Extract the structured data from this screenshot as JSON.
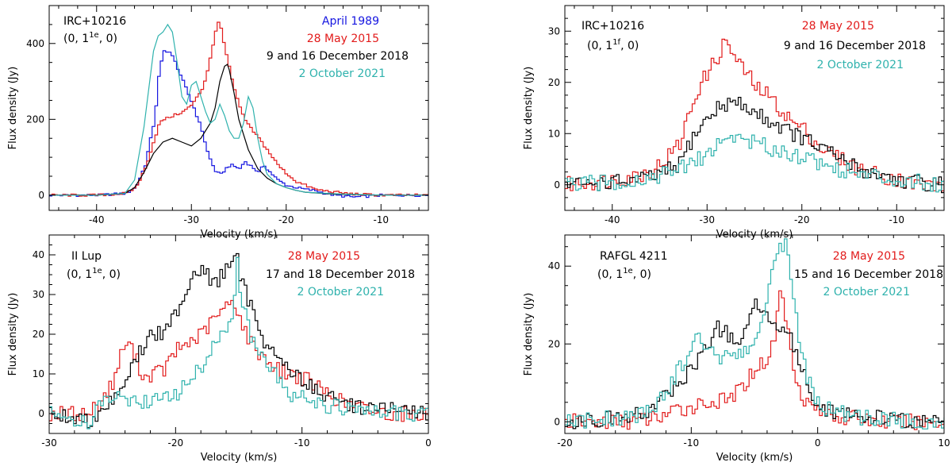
{
  "colors": {
    "blue": "#1515e0",
    "red": "#e21b1b",
    "black": "#000000",
    "cyan": "#2fb2ad"
  },
  "chart_data": [
    {
      "type": "line",
      "object": "IRC+10216",
      "transition": [
        "(0, 1",
        "1e",
        ", 0)"
      ],
      "xlabel": "Velocity (km/s)",
      "ylabel": "Flux density (Jy)",
      "xlim": [
        -45,
        -5
      ],
      "ylim": [
        -40,
        500
      ],
      "xticks": [
        -40,
        -30,
        -20,
        -10
      ],
      "yticks": [
        0,
        200,
        400
      ],
      "grid": false,
      "series": [
        {
          "name": "April 1989",
          "color": "blue",
          "step": true,
          "x": [
            -45,
            -40,
            -37,
            -36,
            -35,
            -34,
            -33.5,
            -33,
            -32.5,
            -32,
            -31.5,
            -31,
            -30,
            -29,
            -28.5,
            -28,
            -27.5,
            -27,
            -26.5,
            -26,
            -25,
            -24.5,
            -24,
            -23,
            -22.5,
            -22,
            -21,
            -20,
            -19,
            -18,
            -17,
            -16,
            -15,
            -13,
            -10,
            -5
          ],
          "y": [
            0,
            0,
            5,
            20,
            80,
            200,
            330,
            380,
            380,
            360,
            330,
            300,
            240,
            170,
            120,
            85,
            60,
            55,
            70,
            80,
            70,
            90,
            80,
            60,
            80,
            65,
            40,
            25,
            20,
            15,
            12,
            5,
            0,
            -5,
            0,
            0
          ]
        },
        {
          "name": "28 May 2015",
          "color": "red",
          "step": true,
          "x": [
            -45,
            -40,
            -37,
            -36,
            -35,
            -34,
            -33.5,
            -33,
            -32,
            -31,
            -30,
            -29,
            -28.5,
            -28,
            -27.5,
            -27.2,
            -27,
            -26.5,
            -26,
            -25.5,
            -25,
            -24.5,
            -24,
            -23,
            -22,
            -21,
            -20,
            -19,
            -18,
            -17,
            -15,
            -13,
            -10,
            -5
          ],
          "y": [
            0,
            0,
            5,
            20,
            70,
            150,
            190,
            200,
            210,
            220,
            240,
            280,
            320,
            380,
            440,
            460,
            440,
            380,
            320,
            270,
            230,
            200,
            180,
            150,
            115,
            80,
            55,
            35,
            25,
            15,
            8,
            3,
            0,
            0
          ]
        },
        {
          "name": "9 and 16 December 2018",
          "color": "black",
          "step": false,
          "x": [
            -45,
            -40,
            -37,
            -36,
            -35,
            -34,
            -33,
            -32,
            -31,
            -30,
            -29,
            -28,
            -27.5,
            -27,
            -26.5,
            -26.2,
            -26,
            -25.5,
            -25,
            -24,
            -23,
            -22,
            -21,
            -20,
            -19,
            -18,
            -15,
            -10,
            -5
          ],
          "y": [
            0,
            0,
            5,
            20,
            60,
            110,
            140,
            150,
            140,
            130,
            150,
            190,
            230,
            300,
            340,
            345,
            330,
            270,
            200,
            120,
            70,
            45,
            30,
            20,
            13,
            8,
            3,
            0,
            0
          ]
        },
        {
          "name": "2 October 2021",
          "color": "cyan",
          "step": false,
          "x": [
            -45,
            -40,
            -37,
            -36,
            -35,
            -34,
            -33.5,
            -33,
            -32.5,
            -32,
            -31.5,
            -31,
            -30.5,
            -30,
            -29.5,
            -29,
            -28.5,
            -28,
            -27.5,
            -27,
            -26.5,
            -26,
            -25.5,
            -25,
            -24.5,
            -24,
            -23.5,
            -23,
            -22.5,
            -22,
            -21,
            -20,
            -19,
            -18,
            -15,
            -10,
            -5
          ],
          "y": [
            0,
            0,
            5,
            40,
            180,
            380,
            420,
            430,
            450,
            430,
            350,
            260,
            240,
            290,
            300,
            260,
            220,
            190,
            200,
            240,
            210,
            170,
            150,
            150,
            190,
            260,
            230,
            150,
            90,
            55,
            30,
            20,
            13,
            8,
            4,
            0,
            0
          ]
        }
      ]
    },
    {
      "type": "line",
      "object": "IRC+10216",
      "transition": [
        "(0, 1",
        "1f",
        ", 0)"
      ],
      "xlabel": "Velocity (km/s)",
      "ylabel": "Flux density (Jy)",
      "xlim": [
        -45,
        -5
      ],
      "ylim": [
        -5,
        35
      ],
      "xticks": [
        -40,
        -30,
        -20,
        -10
      ],
      "yticks": [
        0,
        10,
        20,
        30
      ],
      "grid": false,
      "series": [
        {
          "name": "28 May 2015",
          "color": "red",
          "step": true,
          "x": [
            -45,
            -40,
            -37,
            -35,
            -33,
            -32,
            -31,
            -30,
            -29,
            -28.5,
            -28,
            -27.5,
            -27,
            -26,
            -25,
            -24,
            -23,
            -22,
            -21,
            -20,
            -19,
            -18,
            -17,
            -16,
            -15,
            -14,
            -12,
            -10,
            -8,
            -5
          ],
          "y": [
            0,
            1,
            2,
            4,
            8,
            14,
            19,
            22,
            25,
            27,
            28,
            26,
            24,
            22,
            19,
            18,
            16,
            14,
            12,
            11,
            9,
            7,
            6,
            5,
            4,
            3,
            2,
            1,
            0,
            0
          ]
        },
        {
          "name": "9 and 16 December 2018",
          "color": "black",
          "step": true,
          "x": [
            -45,
            -40,
            -37,
            -35,
            -33,
            -32,
            -31,
            -30,
            -29,
            -28,
            -27,
            -26,
            -25,
            -24,
            -23,
            -22,
            -21,
            -20,
            -19,
            -18,
            -17,
            -16,
            -15,
            -14,
            -12,
            -10,
            -8,
            -5
          ],
          "y": [
            0,
            0.5,
            1,
            2,
            4,
            8,
            11,
            13,
            15,
            16,
            16,
            15,
            14,
            13,
            12,
            11,
            10,
            9,
            8,
            7,
            6,
            5,
            4,
            3,
            2,
            1,
            0.5,
            0
          ]
        },
        {
          "name": "2 October 2021",
          "color": "cyan",
          "step": true,
          "x": [
            -45,
            -40,
            -37,
            -35,
            -33,
            -31,
            -30,
            -29,
            -28,
            -27,
            -26,
            -25,
            -24,
            -23,
            -22,
            -21,
            -20,
            -19,
            -18,
            -17,
            -16,
            -15,
            -14,
            -12,
            -10,
            -8,
            -5
          ],
          "y": [
            0,
            0.5,
            1,
            2,
            3,
            5,
            6,
            8,
            9,
            9.5,
            9,
            8,
            7.5,
            7,
            6.5,
            6,
            5.5,
            5,
            4,
            3.5,
            3,
            2.5,
            2,
            1.5,
            1,
            0.5,
            0
          ]
        }
      ]
    },
    {
      "type": "line",
      "object": "II Lup",
      "transition": [
        "(0, 1",
        "1e",
        ", 0)"
      ],
      "xlabel": "Velocity (km/s)",
      "ylabel": "Flux density (Jy)",
      "xlim": [
        -30,
        0
      ],
      "ylim": [
        -5,
        45
      ],
      "xticks": [
        -30,
        -20,
        -10,
        0
      ],
      "yticks": [
        0,
        10,
        20,
        30,
        40
      ],
      "grid": false,
      "series": [
        {
          "name": "28 May 2015",
          "color": "red",
          "step": true,
          "x": [
            -30,
            -27,
            -26,
            -25,
            -24.5,
            -24,
            -23.5,
            -23,
            -22.5,
            -22,
            -21,
            -20,
            -19,
            -18,
            -17,
            -16,
            -15.5,
            -15,
            -14.5,
            -14,
            -13,
            -12,
            -11,
            -10,
            -9,
            -8,
            -7,
            -5,
            -3,
            0
          ],
          "y": [
            0,
            0,
            3,
            8,
            14,
            18,
            16,
            12,
            9,
            10,
            11,
            16,
            18,
            20,
            24,
            27,
            29,
            24,
            20,
            17,
            14,
            11,
            10,
            9,
            7,
            5,
            3,
            1,
            0,
            0
          ]
        },
        {
          "name": "17 and 18 December 2018",
          "color": "black",
          "step": true,
          "x": [
            -30,
            -27,
            -26,
            -25,
            -24,
            -23,
            -22,
            -21,
            -20,
            -19,
            -18.5,
            -18,
            -17,
            -16.5,
            -16,
            -15.5,
            -15.2,
            -15,
            -14.5,
            -14,
            -13,
            -12,
            -11,
            -10,
            -9,
            -8,
            -6,
            -3,
            0
          ],
          "y": [
            0,
            -2,
            1,
            4,
            9,
            15,
            20,
            20,
            26,
            33,
            36,
            37,
            32,
            35,
            37,
            38,
            39,
            34,
            30,
            26,
            18,
            14,
            11,
            8,
            6,
            4,
            2,
            1,
            0
          ]
        },
        {
          "name": "2 October 2021",
          "color": "cyan",
          "step": true,
          "x": [
            -30,
            -27,
            -26,
            -25,
            -24,
            -23,
            -22,
            -21,
            -20,
            -19,
            -18,
            -17,
            -16,
            -15.5,
            -15.2,
            -15,
            -14.5,
            -14,
            -13,
            -12,
            -11,
            -10,
            -9,
            -8,
            -6,
            -3,
            0
          ],
          "y": [
            0,
            -2,
            2,
            4,
            4,
            3,
            3,
            4,
            5,
            8,
            12,
            18,
            22,
            27,
            38,
            30,
            24,
            18,
            12,
            9,
            5,
            4,
            3,
            2,
            1,
            0,
            0
          ]
        }
      ]
    },
    {
      "type": "line",
      "object": "RAFGL 4211",
      "transition": [
        "(0, 1",
        "1e",
        ", 0)"
      ],
      "xlabel": "Velocity (km/s)",
      "ylabel": "Flux density (Jy)",
      "xlim": [
        -20,
        10
      ],
      "ylim": [
        -3,
        48
      ],
      "xticks": [
        -20,
        -10,
        0,
        10
      ],
      "yticks": [
        0,
        20,
        40
      ],
      "grid": false,
      "series": [
        {
          "name": "28 May 2015",
          "color": "red",
          "step": true,
          "x": [
            -20,
            -15,
            -13,
            -12,
            -11,
            -10,
            -9,
            -8,
            -7,
            -6,
            -5,
            -4,
            -3.5,
            -3,
            -2.5,
            -2,
            -1.5,
            -1,
            0,
            1,
            2,
            3,
            5,
            7,
            10
          ],
          "y": [
            0,
            0,
            1,
            2,
            3,
            4,
            5,
            5,
            6,
            9,
            14,
            16,
            22,
            35,
            24,
            15,
            8,
            5,
            3,
            2,
            1,
            1,
            0,
            0,
            0
          ]
        },
        {
          "name": "15 and 16 December 2018",
          "color": "black",
          "step": true,
          "x": [
            -20,
            -16,
            -14,
            -13,
            -12,
            -11,
            -10,
            -9,
            -8,
            -7,
            -6,
            -5.5,
            -5,
            -4.5,
            -4,
            -3.5,
            -3,
            -2,
            -1,
            0,
            1,
            2,
            3,
            5,
            7,
            10
          ],
          "y": [
            0,
            1,
            2,
            4,
            7,
            10,
            14,
            19,
            24,
            22,
            20,
            27,
            31,
            29,
            26,
            26,
            25,
            20,
            10,
            4,
            3,
            2,
            1,
            1,
            0,
            0
          ]
        },
        {
          "name": "2 October 2021",
          "color": "cyan",
          "step": true,
          "x": [
            -20,
            -16,
            -14,
            -13,
            -12,
            -11,
            -10,
            -9.5,
            -9,
            -8,
            -7,
            -6,
            -5,
            -4.5,
            -4,
            -3.5,
            -3,
            -2.5,
            -2,
            -1,
            0,
            1,
            2,
            3,
            5,
            7,
            10
          ],
          "y": [
            0,
            1,
            2,
            4,
            8,
            14,
            19,
            22,
            20,
            17,
            16,
            17,
            21,
            27,
            34,
            40,
            45,
            47,
            30,
            12,
            4,
            3,
            2,
            1,
            1,
            0,
            0
          ]
        }
      ]
    }
  ]
}
